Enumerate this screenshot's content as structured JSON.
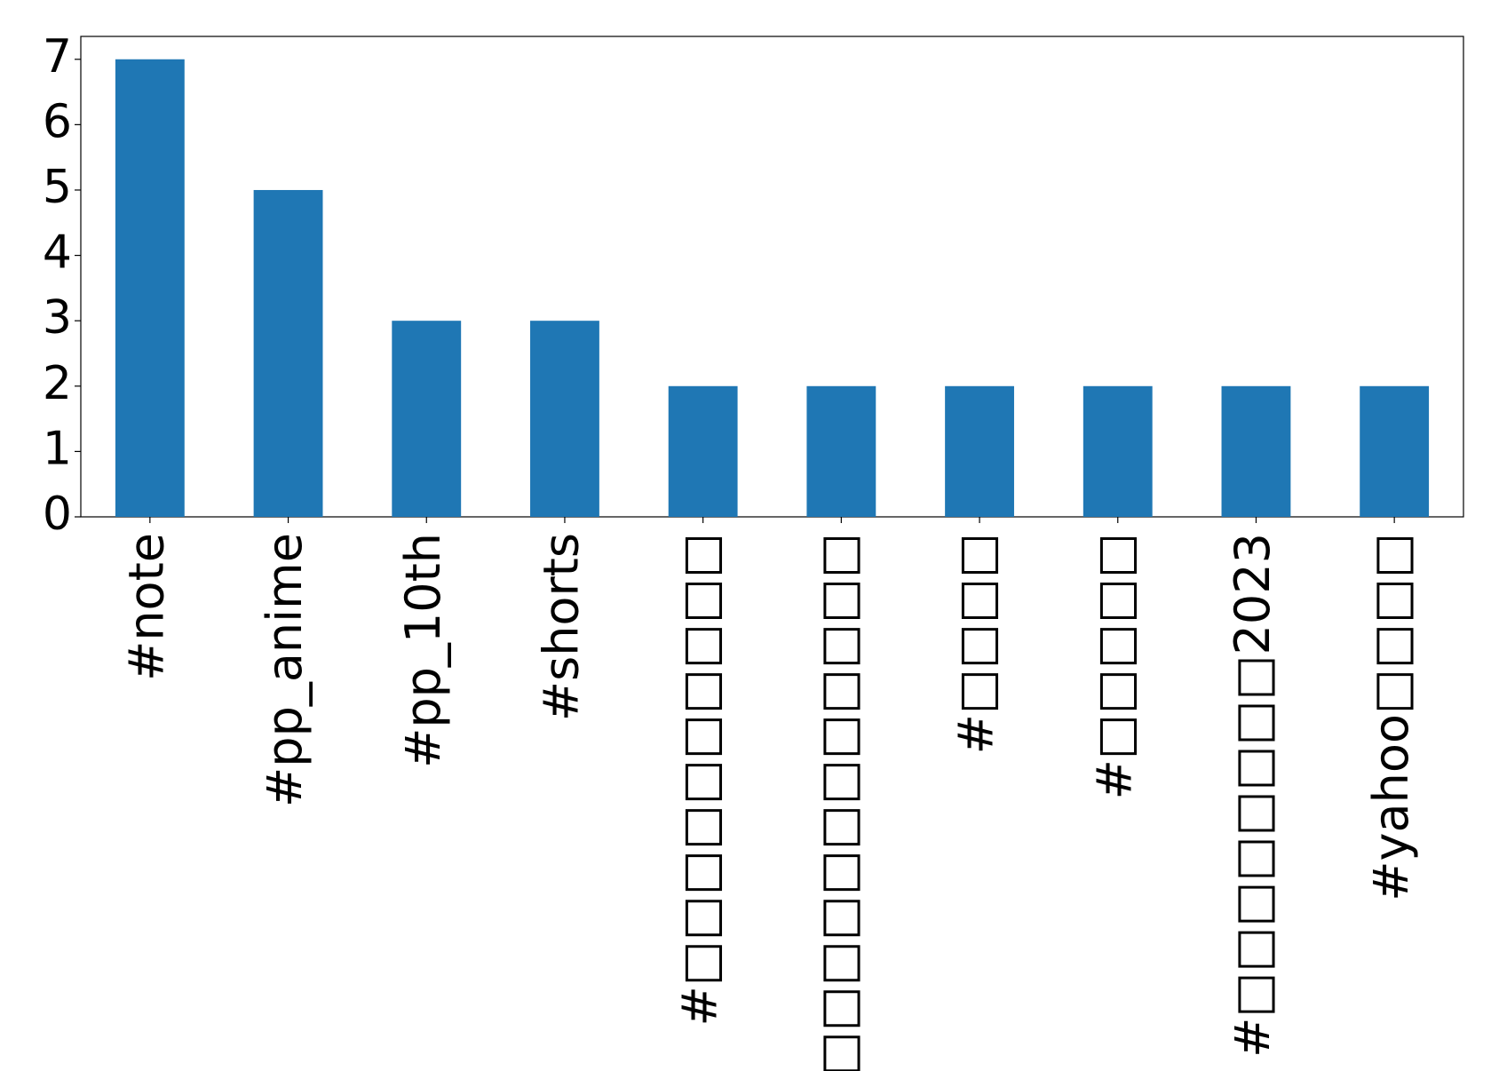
{
  "chart_data": {
    "type": "bar",
    "categories": [
      "#note",
      "#pp_anime",
      "#pp_10th",
      "#shorts",
      "#□□□□□□□□□□",
      "#□□□□□□□□□□□□",
      "#□□□□",
      "#□□□□□",
      "#□□□□□□□□2023",
      "#yahoo□□□□"
    ],
    "values": [
      7,
      5,
      3,
      3,
      2,
      2,
      2,
      2,
      2,
      2
    ],
    "color": "#1f77b4",
    "ylim": [
      0,
      7.35
    ],
    "yticks": [
      0,
      1,
      2,
      3,
      4,
      5,
      6,
      7
    ],
    "grid": false
  }
}
